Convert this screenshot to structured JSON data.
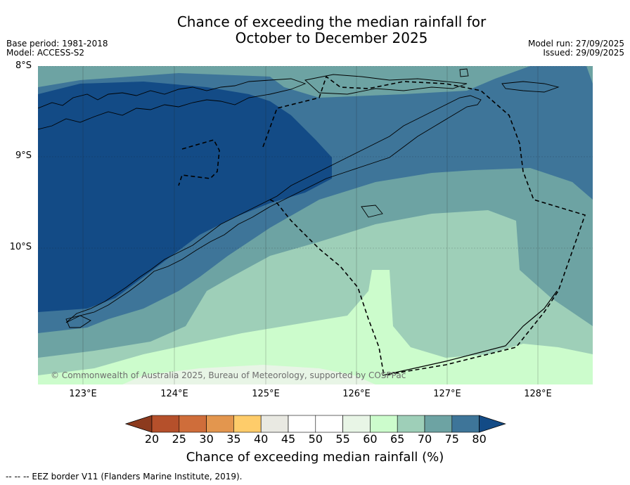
{
  "title_line1": "Chance of exceeding the median rainfall for",
  "title_line2": "October to December 2025",
  "base_period": "Base period: 1981-2018",
  "model": "Model: ACCESS-S2",
  "model_run": "Model run: 27/09/2025",
  "issued": "Issued: 29/09/2025",
  "lat_labels": [
    "8°S",
    "9°S",
    "10°S"
  ],
  "lon_labels": [
    "123°E",
    "124°E",
    "125°E",
    "126°E",
    "127°E",
    "128°E"
  ],
  "copyright": "© Commonwealth of Australia 2025, Bureau of Meteorology, supported by COSPPac",
  "colorbar": {
    "label": "Chance of exceeding median rainfall (%)",
    "ticks": [
      "20",
      "25",
      "30",
      "35",
      "40",
      "45",
      "50",
      "55",
      "60",
      "65",
      "70",
      "75",
      "80"
    ],
    "colors": [
      "#8c3a1e",
      "#b5502b",
      "#cf6d3a",
      "#e3964e",
      "#fecc6a",
      "#e9e9e2",
      "#ffffff",
      "#ffffff",
      "#e8f5e6",
      "#ccfccc",
      "#9ecfb8",
      "#6da3a3",
      "#3e7599",
      "#134b86"
    ]
  },
  "footer": "--  --  -- EEZ border V11 (Flanders Marine Institute, 2019).",
  "chart_data": {
    "type": "map",
    "region_extent": {
      "lon": [
        122.5,
        128.6
      ],
      "lat": [
        -8.0,
        -11.5
      ]
    },
    "variable": "Chance of exceeding median rainfall (%)",
    "bands_present": [
      "60-65",
      "65-70",
      "70-75",
      "75-80",
      ">80"
    ],
    "zones": [
      {
        "range": ">80",
        "area": "Timor island and surrounding sea in west"
      },
      {
        "range": "75-80",
        "area": "central sea and northern strip"
      },
      {
        "range": "70-75",
        "area": "eastern and northern periphery"
      },
      {
        "range": "65-70",
        "area": "south-central and east"
      },
      {
        "range": "60-65",
        "area": "southern Timor Sea"
      }
    ]
  }
}
